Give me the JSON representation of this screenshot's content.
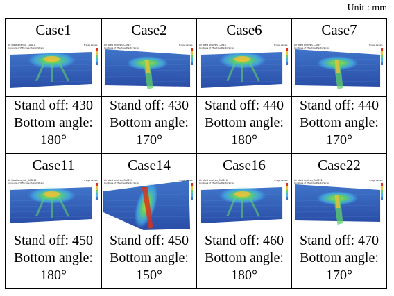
{
  "unit_label": "Unit : mm",
  "rows": [
    {
      "cases": [
        {
          "title": "Case1",
          "standoff": "Stand off: 430",
          "angle_label": "Bottom angle:",
          "angle": "180°",
          "sim_header": [
            "Air blast analysis_CASE1",
            "Contours of Effective Plastic Strain"
          ],
          "legend": "Fringe Levels"
        },
        {
          "title": "Case2",
          "standoff": "Stand off: 430",
          "angle_label": "Bottom angle:",
          "angle": "170°",
          "sim_header": [
            "Air blast analysis_CASE2",
            "Contours of Effective Plastic Strain"
          ],
          "legend": "Fringe Levels"
        },
        {
          "title": "Case6",
          "standoff": "Stand off: 440",
          "angle_label": "Bottom angle:",
          "angle": "180°",
          "sim_header": [
            "Air blast analysis_CASE6",
            "Contours of Effective Plastic Strain"
          ],
          "legend": "Fringe Levels"
        },
        {
          "title": "Case7",
          "standoff": "Stand off: 440",
          "angle_label": "Bottom angle:",
          "angle": "170°",
          "sim_header": [
            "Air blast analysis_CASE7",
            "Contours of Effective Plastic Strain"
          ],
          "legend": "Fringe Levels"
        }
      ]
    },
    {
      "cases": [
        {
          "title": "Case11",
          "standoff": "Stand off: 450",
          "angle_label": "Bottom angle:",
          "angle": "180°",
          "sim_header": [
            "Air blast analysis_CASE11",
            "Contours of Effective Plastic Strain"
          ],
          "legend": "Fringe Levels"
        },
        {
          "title": "Case14",
          "standoff": "Stand off: 450",
          "angle_label": "Bottom angle:",
          "angle": "150°",
          "sim_header": [
            "Air blast analysis_CASE14",
            "Contours of Effective Plastic Strain"
          ],
          "legend": "Fringe Levels"
        },
        {
          "title": "Case16",
          "standoff": "Stand off: 460",
          "angle_label": "Bottom angle:",
          "angle": "180°",
          "sim_header": [
            "Air blast analysis_CASE16",
            "Contours of Effective Plastic Strain"
          ],
          "legend": "Fringe Levels"
        },
        {
          "title": "Case22",
          "standoff": "Stand off: 470",
          "angle_label": "Bottom angle:",
          "angle": "170°",
          "sim_header": [
            "Air blast analysis_CASE22",
            "Contours of Effective Plastic Strain"
          ],
          "legend": "Fringe Levels"
        }
      ]
    }
  ],
  "colors": {
    "plate_top": "#3f74c9",
    "plate_bottom": "#2a4ea8",
    "strain_low": "#45b6e8",
    "strain_mid": "#5fd06a",
    "strain_high": "#e8c23a",
    "strain_peak": "#d8321c"
  }
}
